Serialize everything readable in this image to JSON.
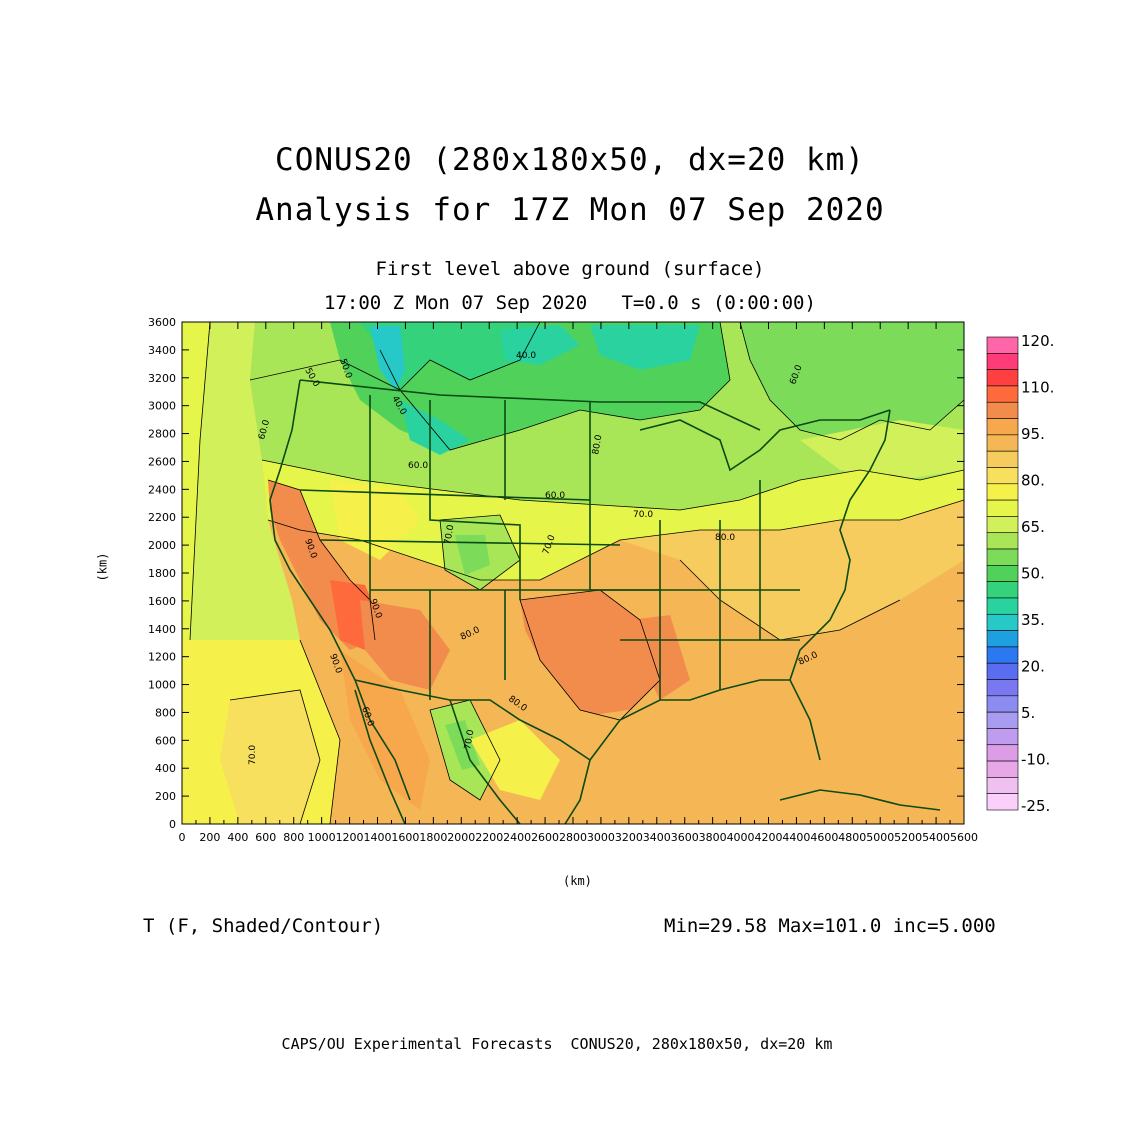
{
  "titles": {
    "main": "CONUS20 (280x180x50, dx=20 km)",
    "analysis": "Analysis for 17Z Mon 07 Sep 2020",
    "level": "First level above ground (surface)",
    "time": "17:00 Z Mon 07 Sep 2020   T=0.0 s (0:00:00)"
  },
  "axes": {
    "x_unit": "(km)",
    "y_unit": "(km)",
    "x_ticks": [
      "0",
      "200",
      "400",
      "600",
      "800",
      "1000",
      "1200",
      "1400",
      "1600",
      "1800",
      "2000",
      "2200",
      "2400",
      "2600",
      "2800",
      "3000",
      "3200",
      "3400",
      "3600",
      "3800",
      "4000",
      "4200",
      "4400",
      "4600",
      "4800",
      "5000",
      "5200",
      "5400",
      "5600"
    ],
    "y_ticks": [
      "0",
      "200",
      "400",
      "600",
      "800",
      "1000",
      "1200",
      "1400",
      "1600",
      "1800",
      "2000",
      "2200",
      "2400",
      "2600",
      "2800",
      "3000",
      "3200",
      "3400",
      "3600"
    ],
    "x_range": [
      0,
      5600
    ],
    "y_range": [
      0,
      3600
    ]
  },
  "colorbar": {
    "labels": [
      "120.",
      "110.",
      "95.",
      "80.",
      "65.",
      "50.",
      "35.",
      "20.",
      "5.",
      "-10.",
      "-25."
    ],
    "colors": [
      "#ff66aa",
      "#ff3c78",
      "#ff4040",
      "#ff6a3c",
      "#f28c4c",
      "#f7a84c",
      "#f5b756",
      "#f7cc5e",
      "#f7e05e",
      "#f5f04a",
      "#e6f54a",
      "#d2f05a",
      "#a8e658",
      "#7cdc5a",
      "#50d25a",
      "#34d27a",
      "#2ad2a0",
      "#26c8c8",
      "#1ea0e0",
      "#2c78f0",
      "#5a6cf0",
      "#7a78f0",
      "#8c8cf0",
      "#a89cf0",
      "#c09cf0",
      "#dc9ce6",
      "#e8a8e8",
      "#f0c0f0",
      "#fad0fa"
    ]
  },
  "contour_labels": [
    "40.0",
    "40.0",
    "50.0",
    "50.0",
    "60.0",
    "60.0",
    "60.0",
    "70.0",
    "70.0",
    "70.0",
    "70.0",
    "70.0",
    "80.0",
    "80.0",
    "80.0",
    "80.0",
    "80.0",
    "60.0",
    "90.0",
    "90.0",
    "90.0",
    "60.0"
  ],
  "variable": "T (F, Shaded/Contour)",
  "stats": "Min=29.58 Max=101.0 inc=5.000",
  "footer": "CAPS/OU Experimental Forecasts  CONUS20, 280x180x50, dx=20 km",
  "colors": {
    "map_lines": "#0b4a13",
    "frame": "#000000"
  }
}
